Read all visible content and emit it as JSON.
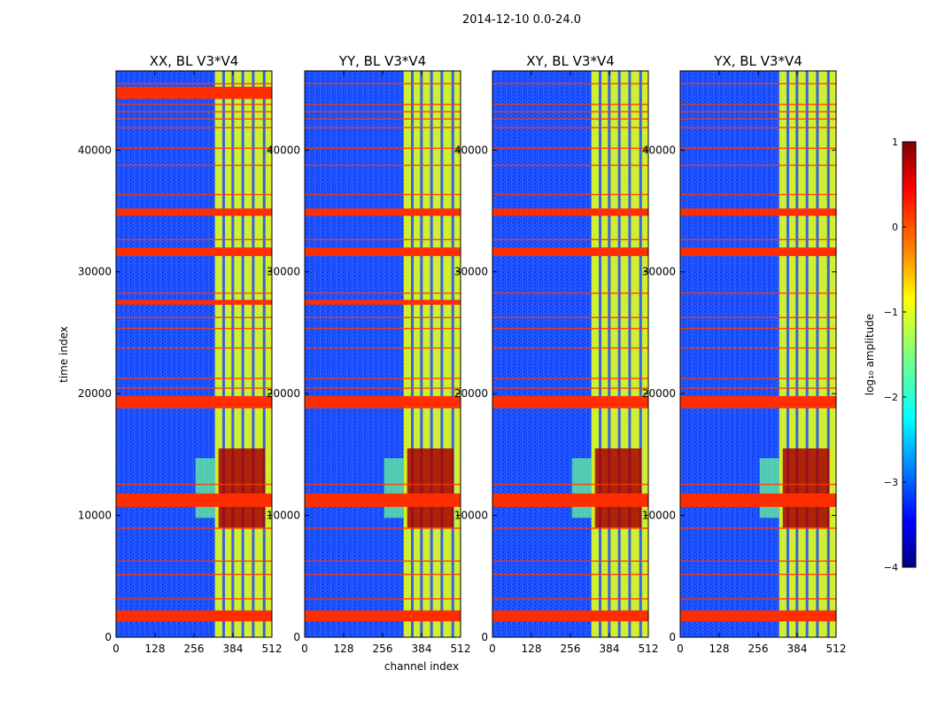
{
  "figure": {
    "suptitle": "2014-12-10 0.0-24.0",
    "xlabel": "channel index",
    "ylabel": "time index"
  },
  "colorbar": {
    "label": "log₁₀ amplitude",
    "range": [
      -4,
      1
    ],
    "ticks": [
      1,
      0,
      -1,
      -2,
      -3,
      -4
    ],
    "tick_labels": [
      "1",
      "0",
      "−1",
      "−2",
      "−3",
      "−4"
    ],
    "colormap": "jet",
    "jet_stops": [
      "#000080",
      "#0000ff",
      "#0080ff",
      "#00ffff",
      "#80ff80",
      "#ffff00",
      "#ff8000",
      "#ff0000",
      "#800000"
    ]
  },
  "chart_data": [
    {
      "type": "heatmap",
      "title": "XX, BL V3*V4",
      "xlabel": "",
      "ylabel": "time index",
      "xlim": [
        0,
        512
      ],
      "ylim": [
        0,
        46500
      ],
      "x_ticks": [
        0,
        128,
        256,
        384,
        512
      ],
      "x_tick_labels": [
        "0",
        "128",
        "256",
        "384",
        "512"
      ],
      "y_ticks": [
        0,
        10000,
        20000,
        30000,
        40000
      ],
      "y_tick_labels": [
        "0",
        "10000",
        "20000",
        "30000",
        "40000"
      ],
      "z_label": "log10 amplitude",
      "background_level": -3,
      "active_channel_band": [
        325,
        512
      ],
      "active_band_level": -1,
      "strong_interval_time": [
        9000,
        15500
      ],
      "strong_interval_level": 0.8,
      "flagged_time_bands": [
        [
          1300,
          2200
        ],
        [
          10700,
          11800
        ],
        [
          18800,
          19800
        ],
        [
          31300,
          32000
        ],
        [
          34600,
          35200
        ],
        [
          27300,
          27700
        ],
        [
          44200,
          45200
        ]
      ]
    },
    {
      "type": "heatmap",
      "title": "YY, BL V3*V4",
      "xlabel": "channel index",
      "ylabel": "",
      "xlim": [
        0,
        512
      ],
      "ylim": [
        0,
        46500
      ],
      "x_ticks": [
        0,
        128,
        256,
        384,
        512
      ],
      "x_tick_labels": [
        "0",
        "128",
        "256",
        "384",
        "512"
      ],
      "y_ticks": [
        0,
        10000,
        20000,
        30000,
        40000
      ],
      "y_tick_labels": [
        "0",
        "10000",
        "20000",
        "30000",
        "40000"
      ],
      "z_label": "log10 amplitude",
      "background_level": -3,
      "active_channel_band": [
        325,
        512
      ],
      "active_band_level": -1,
      "strong_interval_time": [
        9000,
        15500
      ],
      "strong_interval_level": 0.8,
      "flagged_time_bands": [
        [
          1300,
          2200
        ],
        [
          10700,
          11800
        ],
        [
          18800,
          19800
        ],
        [
          31300,
          32000
        ],
        [
          34600,
          35200
        ],
        [
          27300,
          27700
        ]
      ]
    },
    {
      "type": "heatmap",
      "title": "XY, BL V3*V4",
      "xlabel": "",
      "ylabel": "",
      "xlim": [
        0,
        512
      ],
      "ylim": [
        0,
        46500
      ],
      "x_ticks": [
        0,
        128,
        256,
        384,
        512
      ],
      "x_tick_labels": [
        "0",
        "128",
        "256",
        "384",
        "512"
      ],
      "y_ticks": [
        0,
        10000,
        20000,
        30000,
        40000
      ],
      "y_tick_labels": [
        "0",
        "10000",
        "20000",
        "30000",
        "40000"
      ],
      "z_label": "log10 amplitude",
      "background_level": -3,
      "active_channel_band": [
        325,
        512
      ],
      "active_band_level": -1,
      "strong_interval_time": [
        9000,
        15500
      ],
      "strong_interval_level": 0.8,
      "flagged_time_bands": [
        [
          1300,
          2200
        ],
        [
          10700,
          11800
        ],
        [
          18800,
          19800
        ],
        [
          31300,
          32000
        ],
        [
          34600,
          35200
        ]
      ]
    },
    {
      "type": "heatmap",
      "title": "YX, BL V3*V4",
      "xlabel": "",
      "ylabel": "",
      "xlim": [
        0,
        512
      ],
      "ylim": [
        0,
        46500
      ],
      "x_ticks": [
        0,
        128,
        256,
        384,
        512
      ],
      "x_tick_labels": [
        "0",
        "128",
        "256",
        "384",
        "512"
      ],
      "y_ticks": [
        0,
        10000,
        20000,
        30000,
        40000
      ],
      "y_tick_labels": [
        "0",
        "10000",
        "20000",
        "30000",
        "40000"
      ],
      "z_label": "log10 amplitude",
      "background_level": -3,
      "active_channel_band": [
        325,
        512
      ],
      "active_band_level": -1,
      "strong_interval_time": [
        9000,
        15500
      ],
      "strong_interval_level": 0.8,
      "flagged_time_bands": [
        [
          1300,
          2200
        ],
        [
          10700,
          11800
        ],
        [
          18800,
          19800
        ],
        [
          31300,
          32000
        ],
        [
          34600,
          35200
        ]
      ]
    }
  ]
}
